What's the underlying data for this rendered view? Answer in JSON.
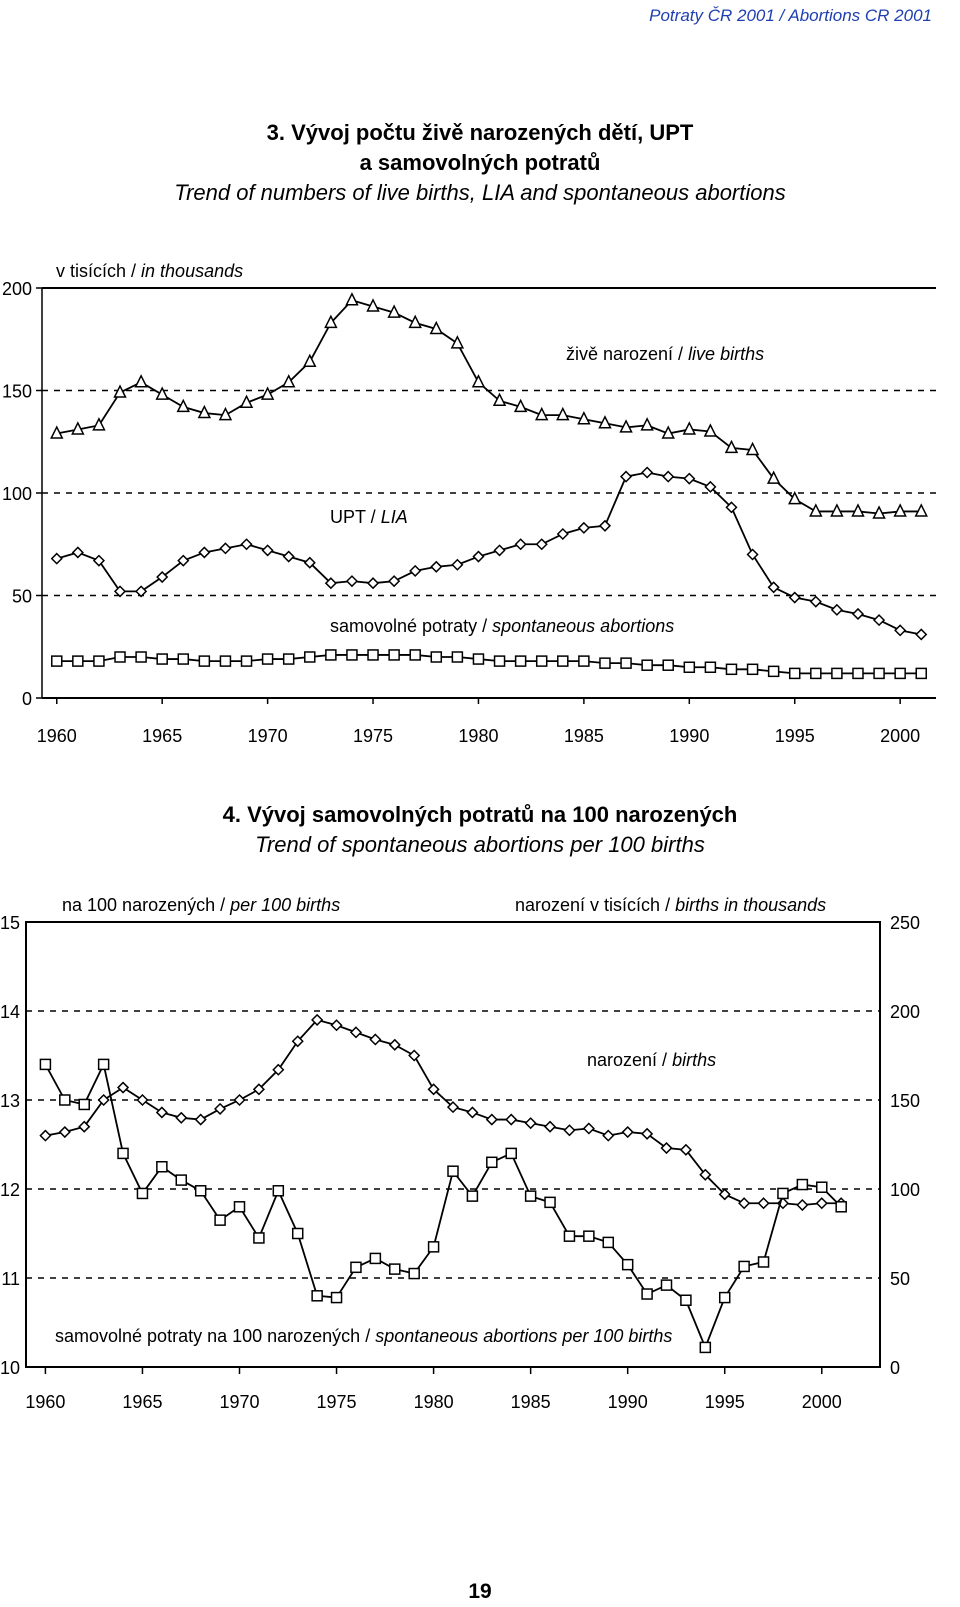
{
  "header": "Potraty ČR 2001 / Abortions CR 2001",
  "page_number": "19",
  "chart_data": [
    {
      "type": "line",
      "title_cz_1": "3. Vývoj počtu živě narozených dětí, UPT",
      "title_cz_2": "a samovolných potratů",
      "title_en": "Trend of numbers of live births, LIA and spontaneous abortions",
      "unit_cz": "v tisících / ",
      "unit_en": "in thousands",
      "ylim": [
        0,
        200
      ],
      "yticks": [
        "0",
        "50",
        "100",
        "150",
        "200"
      ],
      "xlim": [
        1959.3,
        2001.7
      ],
      "xticks": [
        "1960",
        "1965",
        "1970",
        "1975",
        "1980",
        "1985",
        "1990",
        "1995",
        "2000"
      ],
      "grid": "dashed",
      "x": [
        1960,
        1961,
        1962,
        1963,
        1964,
        1965,
        1966,
        1967,
        1968,
        1969,
        1970,
        1971,
        1972,
        1973,
        1974,
        1975,
        1976,
        1977,
        1978,
        1979,
        1980,
        1981,
        1982,
        1983,
        1984,
        1985,
        1986,
        1987,
        1988,
        1989,
        1990,
        1991,
        1992,
        1993,
        1994,
        1995,
        1996,
        1997,
        1998,
        1999,
        2000,
        2001
      ],
      "series": [
        {
          "name_cz": "živě narození / ",
          "name_en": "live births",
          "marker": "triangle",
          "values": [
            129,
            131,
            133,
            149,
            154,
            148,
            142,
            139,
            138,
            144,
            148,
            154,
            164,
            183,
            194,
            191,
            188,
            183,
            180,
            173,
            154,
            145,
            142,
            138,
            138,
            136,
            134,
            132,
            133,
            129,
            131,
            130,
            122,
            121,
            107,
            97,
            91,
            91,
            91,
            90,
            91,
            91
          ]
        },
        {
          "name_cz": "UPT / ",
          "name_en": "LIA",
          "marker": "diamond",
          "values": [
            68,
            71,
            67,
            52,
            52,
            59,
            67,
            71,
            73,
            75,
            72,
            69,
            66,
            56,
            57,
            56,
            57,
            62,
            64,
            65,
            69,
            72,
            75,
            75,
            80,
            83,
            84,
            108,
            110,
            108,
            107,
            103,
            93,
            70,
            54,
            49,
            47,
            43,
            41,
            38,
            33,
            31
          ]
        },
        {
          "name_cz": "samovolné potraty / ",
          "name_en": "spontaneous abortions",
          "marker": "square",
          "values": [
            18,
            18,
            18,
            20,
            20,
            19,
            19,
            18,
            18,
            18,
            19,
            19,
            20,
            21,
            21,
            21,
            21,
            21,
            20,
            20,
            19,
            18,
            18,
            18,
            18,
            18,
            17,
            17,
            16,
            16,
            15,
            15,
            14,
            14,
            13,
            12,
            12,
            12,
            12,
            12,
            12,
            12
          ]
        }
      ]
    },
    {
      "type": "line",
      "title_cz": "4. Vývoj samovolných potratů na 100 narozených",
      "title_en": "Trend of spontaneous abortions per 100 births",
      "left_unit_cz": "na 100 narozených / ",
      "left_unit_en": "per 100 births",
      "right_unit_cz": "narození v tisících / ",
      "right_unit_en": "births in thousands",
      "ylim_left": [
        10,
        15
      ],
      "yticks_left": [
        "10",
        "11",
        "12",
        "13",
        "14",
        "15"
      ],
      "ylim_right": [
        0,
        250
      ],
      "yticks_right": [
        "0",
        "50",
        "100",
        "150",
        "200",
        "250"
      ],
      "xlim": [
        1959,
        2003
      ],
      "xticks": [
        "1960",
        "1965",
        "1970",
        "1975",
        "1980",
        "1985",
        "1990",
        "1995",
        "2000"
      ],
      "grid": "dashed",
      "x": [
        1960,
        1961,
        1962,
        1963,
        1964,
        1965,
        1966,
        1967,
        1968,
        1969,
        1970,
        1971,
        1972,
        1973,
        1974,
        1975,
        1976,
        1977,
        1978,
        1979,
        1980,
        1981,
        1982,
        1983,
        1984,
        1985,
        1986,
        1987,
        1988,
        1989,
        1990,
        1991,
        1992,
        1993,
        1994,
        1995,
        1996,
        1997,
        1998,
        1999,
        2000,
        2001
      ],
      "series": [
        {
          "name_cz": "narození / ",
          "name_en": "births",
          "axis": "right",
          "marker": "diamond",
          "values": [
            130,
            132,
            135,
            150,
            157,
            150,
            143,
            140,
            139,
            145,
            150,
            156,
            167,
            183,
            195,
            192,
            188,
            184,
            181,
            175,
            156,
            146,
            143,
            139,
            139,
            137,
            135,
            133,
            134,
            130,
            132,
            131,
            123,
            122,
            108,
            97,
            92,
            92,
            92,
            91,
            92,
            92
          ]
        },
        {
          "name_cz": "samovolné potraty na 100 narozených / ",
          "name_en": "spontaneous abortions per 100 births",
          "axis": "left",
          "marker": "square",
          "values": [
            13.4,
            13.0,
            12.95,
            13.4,
            12.4,
            11.95,
            12.25,
            12.1,
            11.98,
            11.65,
            11.8,
            11.45,
            11.98,
            11.5,
            10.8,
            10.78,
            11.12,
            11.22,
            11.1,
            11.05,
            11.35,
            12.2,
            11.92,
            12.3,
            12.4,
            11.92,
            11.85,
            11.47,
            11.47,
            11.4,
            11.15,
            10.82,
            10.92,
            10.75,
            10.22,
            10.78,
            11.13,
            11.18,
            11.95,
            12.05,
            12.02,
            11.8
          ]
        }
      ]
    }
  ]
}
